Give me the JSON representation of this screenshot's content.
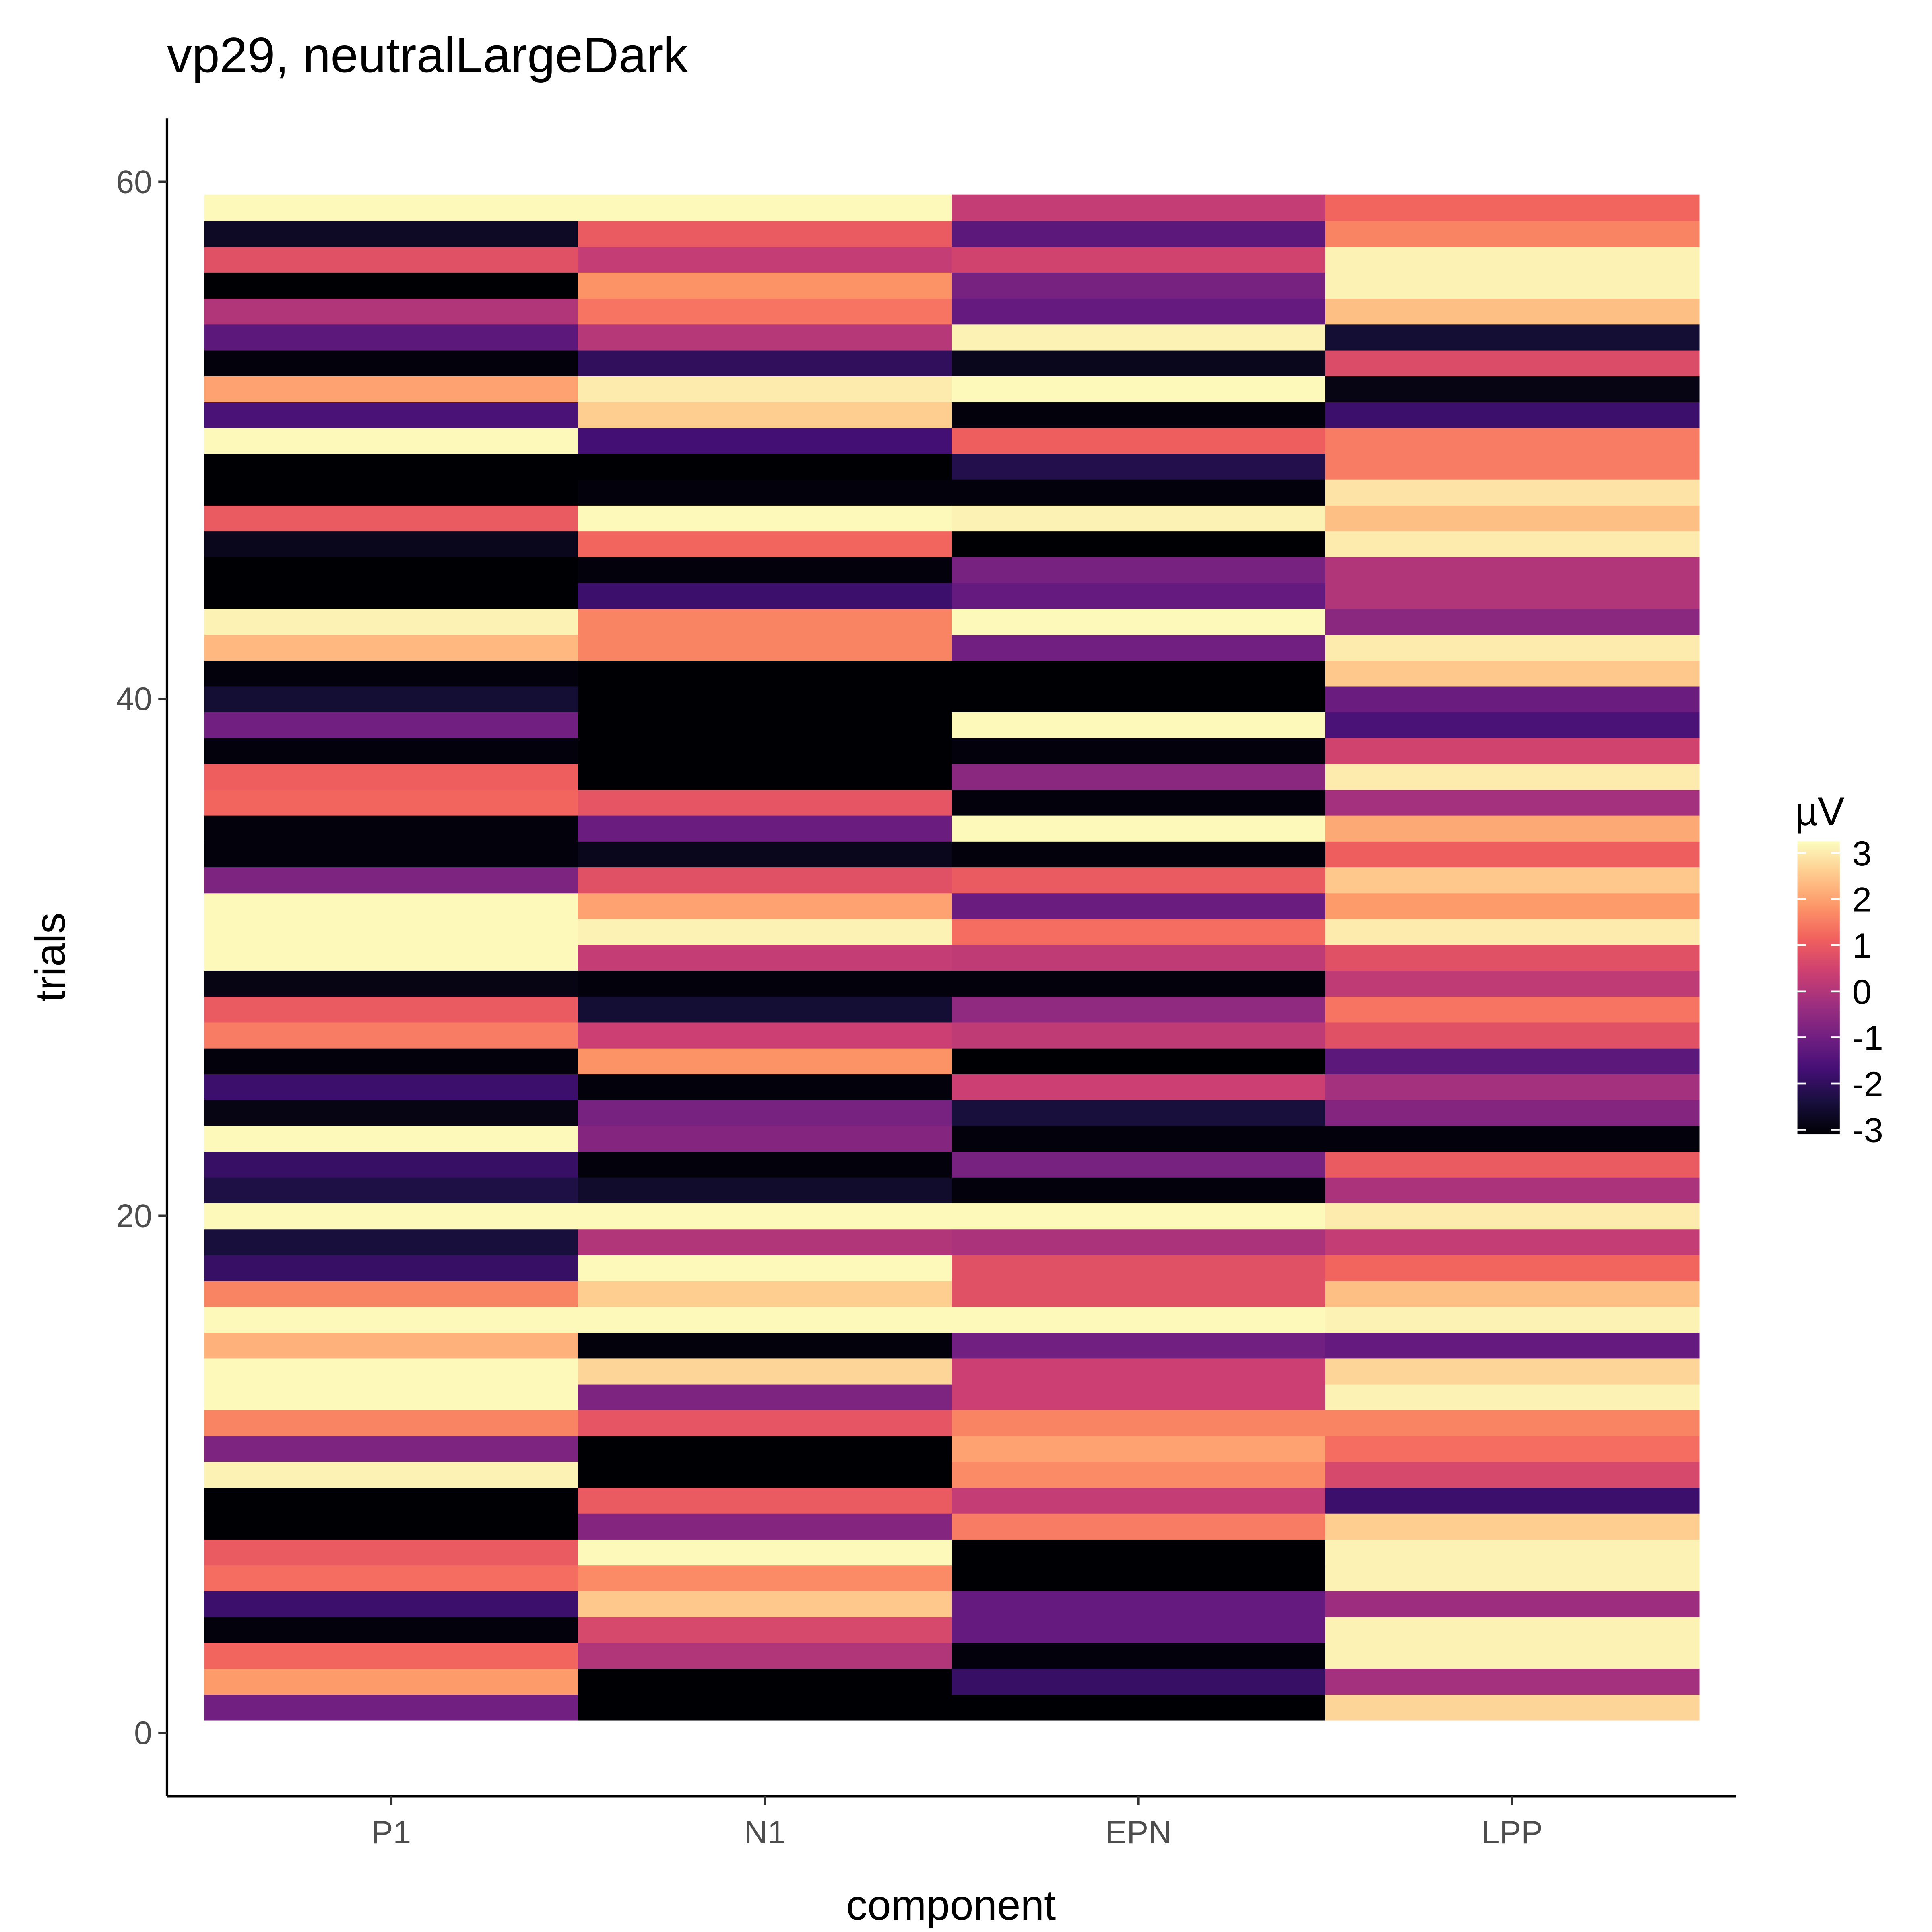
{
  "chart_data": {
    "type": "heatmap",
    "title": "vp29, neutralLargeDark",
    "x_label": "component",
    "y_label": "trials",
    "categories": [
      "P1",
      "N1",
      "EPN",
      "LPP"
    ],
    "y": [
      1,
      2,
      3,
      4,
      5,
      6,
      7,
      8,
      9,
      10,
      11,
      12,
      13,
      14,
      15,
      16,
      17,
      18,
      19,
      20,
      21,
      22,
      23,
      24,
      25,
      26,
      27,
      28,
      29,
      30,
      31,
      32,
      33,
      34,
      35,
      36,
      37,
      38,
      39,
      40,
      41,
      42,
      43,
      44,
      45,
      46,
      47,
      48,
      49,
      50,
      51,
      52,
      53,
      54,
      55,
      56,
      57,
      58,
      59
    ],
    "values": [
      [
        -1.0,
        1.9,
        1.2,
        -3.0,
        -1.8,
        1.3,
        1.0,
        -3.1,
        -3.1,
        3.1,
        -0.8,
        1.6,
        3.2,
        3.2,
        2.2,
        3.2,
        1.6,
        -1.9,
        -2.4,
        3.2,
        -2.3,
        -1.9,
        3.2,
        -2.9,
        -1.8,
        -3.0,
        1.5,
        1.0,
        -2.9,
        3.2,
        3.2,
        3.2,
        -0.8,
        -3.0,
        -3.0,
        1.2,
        1.1,
        -3.0,
        -1.0,
        -2.5,
        -3.0,
        2.3,
        3.1,
        -3.1,
        -3.1,
        -2.8,
        1.0,
        -3.1,
        -3.1,
        3.2,
        -1.6,
        2.0,
        -3.0,
        -1.3,
        0.0,
        -3.1,
        0.8,
        -2.7,
        3.2
      ],
      [
        -3.1,
        -3.1,
        0.0,
        0.6,
        2.5,
        1.7,
        3.2,
        -0.7,
        1.0,
        -3.1,
        -3.1,
        0.9,
        -0.8,
        2.7,
        -3.0,
        3.2,
        2.6,
        3.2,
        0.0,
        3.2,
        -2.6,
        -3.0,
        -0.7,
        -0.9,
        -3.0,
        1.8,
        0.4,
        -2.5,
        -3.0,
        0.3,
        3.1,
        2.0,
        0.8,
        -2.8,
        -1.1,
        0.9,
        -3.1,
        -3.1,
        -3.1,
        -3.1,
        -3.1,
        1.6,
        1.6,
        -1.8,
        -3.0,
        1.2,
        3.2,
        -3.0,
        -3.1,
        -1.7,
        2.6,
        3.0,
        -2.0,
        0.1,
        1.4,
        1.8,
        0.3,
        1.0,
        3.2
      ],
      [
        -3.1,
        -1.9,
        -3.0,
        -1.2,
        -1.2,
        -3.1,
        -3.1,
        1.5,
        0.3,
        1.7,
        2.0,
        1.6,
        0.4,
        0.4,
        -1.0,
        3.2,
        0.8,
        0.8,
        -0.1,
        3.2,
        -3.0,
        -0.9,
        -3.0,
        -2.4,
        0.4,
        -3.1,
        0.2,
        -0.5,
        -3.0,
        0.2,
        1.3,
        -1.1,
        1.0,
        -3.0,
        3.2,
        -3.0,
        -0.6,
        -3.0,
        3.2,
        -3.1,
        -3.1,
        -1.0,
        3.2,
        -1.2,
        -0.9,
        -3.1,
        3.1,
        -3.0,
        -2.2,
        1.1,
        -3.0,
        3.2,
        -2.8,
        3.1,
        -1.2,
        -0.9,
        0.5,
        -1.3,
        0.3
      ],
      [
        2.7,
        -0.2,
        3.1,
        3.1,
        -0.3,
        3.1,
        3.1,
        2.6,
        -1.8,
        0.6,
        1.3,
        1.6,
        3.1,
        2.7,
        -1.2,
        3.1,
        2.4,
        1.2,
        0.3,
        3.0,
        -0.1,
        1.0,
        -3.0,
        -0.7,
        -0.2,
        -1.3,
        0.8,
        1.4,
        0.2,
        0.8,
        3.0,
        1.9,
        2.5,
        1.1,
        2.1,
        -0.2,
        3.0,
        0.5,
        -1.6,
        -1.1,
        2.5,
        3.0,
        -0.6,
        0.0,
        0.0,
        3.0,
        2.4,
        2.9,
        1.5,
        1.5,
        -1.8,
        -2.9,
        0.7,
        -2.5,
        2.4,
        3.1,
        3.1,
        1.6,
        1.2
      ]
    ],
    "ylim": [
      -2.45,
      62.45
    ],
    "yticks": [
      0,
      20,
      40,
      60
    ],
    "legend_title": "µV",
    "zlim": [
      -3.1,
      3.25
    ],
    "zticks": [
      -3,
      -2,
      -1,
      0,
      1,
      2,
      3
    ],
    "colormap": [
      "#000004",
      "#180f3d",
      "#440f76",
      "#721f81",
      "#9e2f7f",
      "#cd4071",
      "#f1605d",
      "#fd9668",
      "#feca8d",
      "#fcfdbf"
    ],
    "legend_position": "right"
  }
}
